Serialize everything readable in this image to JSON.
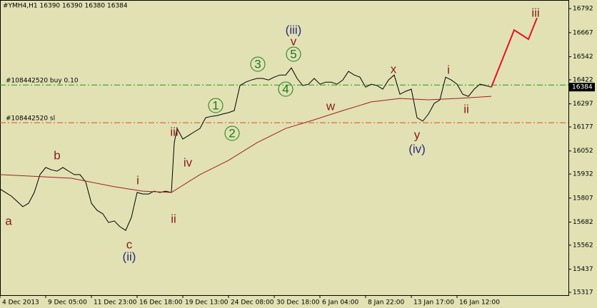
{
  "chart_data": {
    "type": "line",
    "title": "#YMH4,H1  16390 16390 16380 16384",
    "background": "#e1e1b4",
    "xlim": [
      0,
      199
    ],
    "xticks": [
      {
        "value": 0,
        "label": "4 Dec 2013"
      },
      {
        "value": 16,
        "label": "9 Dec 05:00"
      },
      {
        "value": 32,
        "label": "11 Dec 23:00"
      },
      {
        "value": 48,
        "label": "16 Dec 18:00"
      },
      {
        "value": 64,
        "label": "19 Dec 13:00"
      },
      {
        "value": 80,
        "label": "24 Dec 08:00"
      },
      {
        "value": 96,
        "label": "30 Dec 18:00"
      },
      {
        "value": 112,
        "label": "6 Jan 04:00"
      },
      {
        "value": 128,
        "label": "8 Jan 22:00"
      },
      {
        "value": 144,
        "label": "13 Jan 17:00"
      },
      {
        "value": 160,
        "label": "16 Jan 12:00"
      }
    ],
    "ylim": [
      15302,
      16837
    ],
    "yticks": [
      16792,
      16667,
      16542,
      16422,
      16297,
      16177,
      16052,
      15932,
      15807,
      15682,
      15562,
      15437,
      15317
    ],
    "series": [
      {
        "color": "#000000",
        "x": [
          0,
          4,
          8,
          10,
          12,
          14,
          16,
          18,
          20,
          22,
          24,
          26,
          28,
          30,
          32,
          34,
          36,
          38,
          40,
          42,
          44,
          46,
          48,
          50,
          52,
          54,
          56,
          58,
          60,
          61,
          62,
          64,
          66,
          68,
          70,
          72,
          74,
          76,
          78,
          80,
          82,
          84,
          86,
          88,
          90,
          92,
          94,
          96,
          98,
          100,
          102,
          104,
          106,
          108,
          110,
          112,
          114,
          116,
          118,
          120,
          122,
          124,
          126,
          128,
          130,
          132,
          134,
          136,
          138,
          140,
          142,
          144,
          146,
          148,
          150,
          152,
          154,
          156,
          158,
          160,
          162,
          164,
          166,
          168,
          170,
          172
        ],
        "values": [
          15854,
          15817,
          15762,
          15780,
          15836,
          15929,
          15966,
          15954,
          15947,
          15966,
          15947,
          15929,
          15929,
          15891,
          15780,
          15743,
          15725,
          15680,
          15688,
          15658,
          15639,
          15706,
          15836,
          15828,
          15828,
          15843,
          15836,
          15843,
          15836,
          16095,
          16169,
          16114,
          16132,
          16151,
          16169,
          16225,
          16232,
          16236,
          16244,
          16251,
          16262,
          16392,
          16410,
          16421,
          16429,
          16429,
          16421,
          16436,
          16447,
          16447,
          16484,
          16429,
          16392,
          16399,
          16429,
          16399,
          16410,
          16410,
          16399,
          16421,
          16466,
          16447,
          16436,
          16384,
          16399,
          16392,
          16373,
          16421,
          16447,
          16347,
          16362,
          16373,
          16225,
          16207,
          16244,
          16299,
          16318,
          16436,
          16421,
          16399,
          16347,
          16336,
          16373,
          16399,
          16392,
          16384
        ]
      },
      {
        "color": "#a02020",
        "x": [
          0,
          16,
          25,
          40,
          50,
          60,
          70,
          80,
          90,
          100,
          110,
          120,
          130,
          140,
          150,
          160,
          172
        ],
        "values": [
          15929,
          15917,
          15910,
          15866,
          15843,
          15836,
          15929,
          16003,
          16095,
          16169,
          16214,
          16262,
          16307,
          16325,
          16318,
          16325,
          16336
        ]
      },
      {
        "color": "#e8102a",
        "x": [
          172,
          180,
          185,
          188
        ],
        "values": [
          16384,
          16681,
          16633,
          16744
        ]
      }
    ],
    "order_lines": [
      {
        "label": "#108442520 buy 0.10",
        "value": 16395,
        "color": "#1a9a1a"
      },
      {
        "label": "#108442520 sl",
        "value": 16199,
        "color": "#e05020"
      }
    ],
    "last_price": 16384,
    "annotations": [
      {
        "text": "a",
        "color": "#8b1a1a"
      },
      {
        "text": "b",
        "color": "#8b1a1a"
      },
      {
        "text": "c",
        "color": "#8b1a1a"
      },
      {
        "text": "(ii)",
        "color": "#2a2a7a"
      },
      {
        "text": "i",
        "color": "#8b1a1a"
      },
      {
        "text": "ii",
        "color": "#8b1a1a"
      },
      {
        "text": "iii",
        "color": "#8b1a1a"
      },
      {
        "text": "iv",
        "color": "#8b1a1a"
      },
      {
        "text": "1",
        "color": "#1a7a1a"
      },
      {
        "text": "2",
        "color": "#1a7a1a"
      },
      {
        "text": "3",
        "color": "#1a7a1a"
      },
      {
        "text": "4",
        "color": "#1a7a1a"
      },
      {
        "text": "5",
        "color": "#1a7a1a"
      },
      {
        "text": "(iii)",
        "color": "#2a2a7a"
      },
      {
        "text": "v",
        "color": "#8b1a1a"
      },
      {
        "text": "w",
        "color": "#8b1a1a"
      },
      {
        "text": "x",
        "color": "#8b1a1a"
      },
      {
        "text": "y",
        "color": "#8b1a1a"
      },
      {
        "text": "(iv)",
        "color": "#2a2a7a"
      },
      {
        "text": "i",
        "color": "#8b1a1a"
      },
      {
        "text": "ii",
        "color": "#8b1a1a"
      },
      {
        "text": "iii",
        "color": "#8b1a1a"
      }
    ]
  }
}
